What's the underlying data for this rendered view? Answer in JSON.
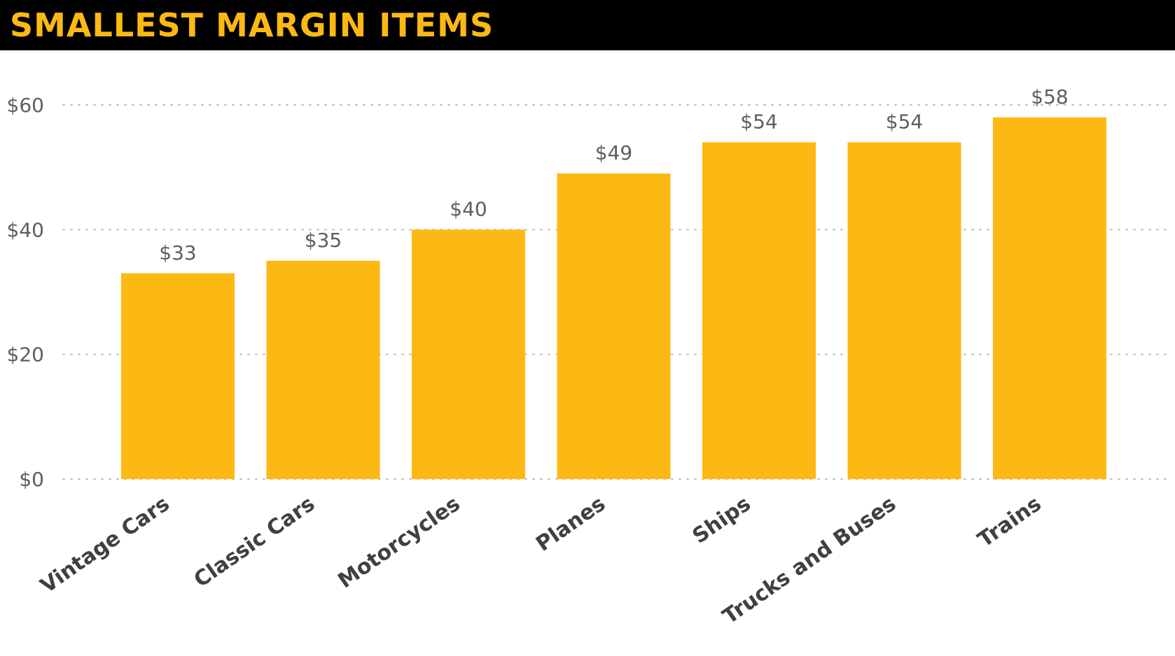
{
  "page": {
    "title": "SMALLEST MARGIN ITEMS"
  },
  "colors": {
    "title_bar": "#000000",
    "title_text": "#FDB913",
    "bar": "#FDB913",
    "grid": "#BDBDBD",
    "axis_text": "#605E5C",
    "category_text": "#404040"
  },
  "chart_data": {
    "type": "bar",
    "title": "SMALLEST MARGIN ITEMS",
    "xlabel": "",
    "ylabel": "",
    "categories": [
      "Vintage Cars",
      "Classic Cars",
      "Motorcycles",
      "Planes",
      "Ships",
      "Trucks and Buses",
      "Trains"
    ],
    "values": [
      33,
      35,
      40,
      49,
      54,
      54,
      58
    ],
    "data_labels": [
      "$33",
      "$35",
      "$40",
      "$49",
      "$54",
      "$54",
      "$58"
    ],
    "ylim": [
      0,
      60
    ],
    "yticks": [
      0,
      20,
      40,
      60
    ],
    "ytick_labels": [
      "$0",
      "$20",
      "$40",
      "$60"
    ],
    "grid": "horizontal-dotted",
    "legend": "none",
    "category_label_rotation_deg": -35
  }
}
